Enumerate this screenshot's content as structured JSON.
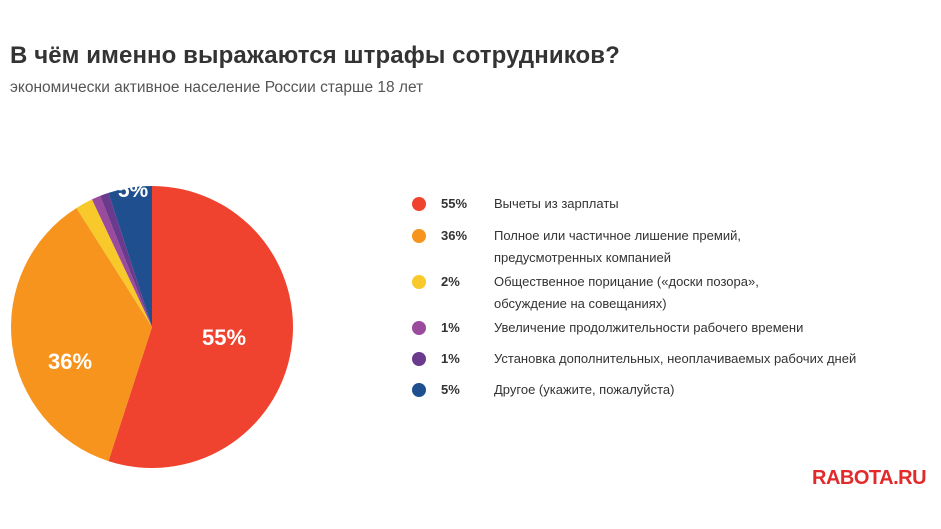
{
  "title": "В чём именно выражаются штрафы сотрудников?",
  "subtitle": "экономически активное население России старше 18 лет",
  "brand": "RABOTA.RU",
  "chart_data": {
    "type": "pie",
    "slices": [
      {
        "label": "Вычеты из зарплаты",
        "value": 55,
        "value_label": "55%",
        "color": "#f0432f"
      },
      {
        "label": "Полное или частичное лишение премий, предусмотренных компанией",
        "label_lines": [
          "Полное или частичное лишение премий,",
          "предусмотренных компанией"
        ],
        "value": 36,
        "value_label": "36%",
        "color": "#f7941d"
      },
      {
        "label": "Общественное порицание («доски позора», обсуждение на совещаниях)",
        "label_lines": [
          "Общественное порицание («доски позора»,",
          "обсуждение на совещаниях)"
        ],
        "value": 2,
        "value_label": "2%",
        "color": "#f7c92a"
      },
      {
        "label": "Увеличение продолжительности рабочего времени",
        "value": 1,
        "value_label": "1%",
        "color": "#9b4b9e"
      },
      {
        "label": "Установка дополнительных, неоплачиваемых рабочих дней",
        "value": 1,
        "value_label": "1%",
        "color": "#6a3a8c"
      },
      {
        "label": "Другое (укажите, пожалуйста)",
        "value": 5,
        "value_label": "5%",
        "color": "#1f4f8f"
      }
    ],
    "slice_labels_shown": [
      "55%",
      "36%",
      "5%"
    ],
    "legend_position": "right"
  }
}
